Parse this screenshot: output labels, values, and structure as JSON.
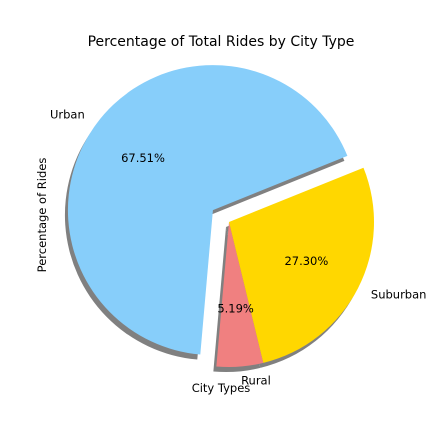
{
  "chart_data": {
    "type": "pie",
    "title": "Percentage of Total Rides by City Type",
    "xlabel": "City Types",
    "ylabel": "Percentage of Rides",
    "slices": [
      {
        "label": "Rural",
        "value": 5.19,
        "pct_label": "5.19%",
        "color": "#F08080",
        "explode": false
      },
      {
        "label": "Suburban",
        "value": 27.3,
        "pct_label": "27.30%",
        "color": "#FFD700",
        "explode": false
      },
      {
        "label": "Urban",
        "value": 67.51,
        "pct_label": "67.51%",
        "color": "#87CEFA",
        "explode": true
      }
    ],
    "shadow": true,
    "start_angle_deg": 265,
    "legend": "none"
  }
}
